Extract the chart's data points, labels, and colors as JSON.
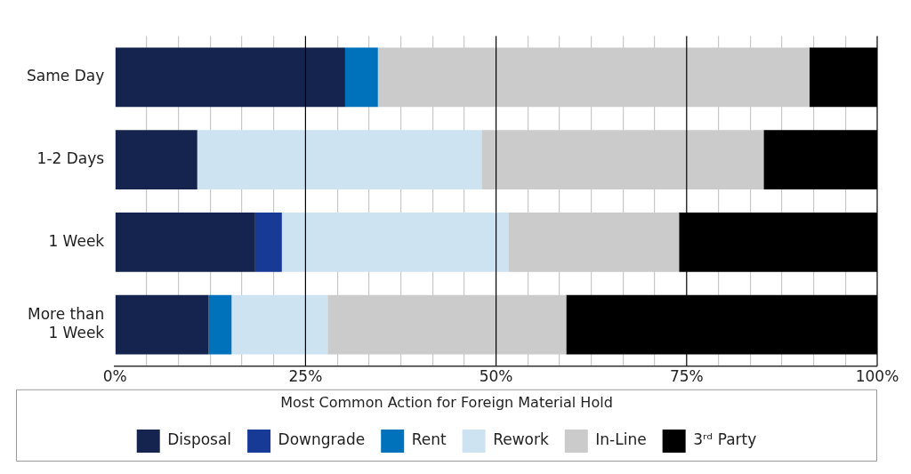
{
  "chart_data": {
    "type": "bar",
    "orientation": "horizontal",
    "stacked": true,
    "categories": [
      "Same Day",
      "1-2 Days",
      "1 Week",
      "More than\n1 Week"
    ],
    "series": [
      {
        "name": "Disposal",
        "color": "#14244f",
        "values": [
          30.2,
          10.8,
          18.4,
          12.3
        ]
      },
      {
        "name": "Downgrade",
        "color": "#163a96",
        "values": [
          0,
          0,
          3.5,
          0
        ]
      },
      {
        "name": "Rent",
        "color": "#0072bc",
        "values": [
          4.3,
          0,
          0,
          3.0
        ]
      },
      {
        "name": "Rework",
        "color": "#cde3f1",
        "values": [
          0,
          37.3,
          29.7,
          12.6
        ]
      },
      {
        "name": "In-Line",
        "color": "#cbcbcb",
        "values": [
          56.6,
          37.0,
          22.4,
          31.3
        ]
      },
      {
        "name": "3ʳᵈ Party",
        "color": "#000000",
        "values": [
          8.9,
          14.9,
          26.0,
          40.8
        ]
      }
    ],
    "xlim": [
      0,
      100
    ],
    "xticks": [
      {
        "value": 0,
        "label": "0%"
      },
      {
        "value": 4.17,
        "label": null
      },
      {
        "value": 8.33,
        "label": null
      },
      {
        "value": 12.5,
        "label": null
      },
      {
        "value": 16.67,
        "label": null
      },
      {
        "value": 20.83,
        "label": null
      },
      {
        "value": 25,
        "label": "25%"
      },
      {
        "value": 29.17,
        "label": null
      },
      {
        "value": 33.33,
        "label": null
      },
      {
        "value": 37.5,
        "label": null
      },
      {
        "value": 41.67,
        "label": null
      },
      {
        "value": 45.83,
        "label": null
      },
      {
        "value": 50,
        "label": "50%"
      },
      {
        "value": 54.17,
        "label": null
      },
      {
        "value": 58.33,
        "label": null
      },
      {
        "value": 62.5,
        "label": null
      },
      {
        "value": 66.67,
        "label": null
      },
      {
        "value": 70.83,
        "label": null
      },
      {
        "value": 75,
        "label": "75%"
      },
      {
        "value": 79.17,
        "label": null
      },
      {
        "value": 83.33,
        "label": null
      },
      {
        "value": 87.5,
        "label": null
      },
      {
        "value": 91.67,
        "label": null
      },
      {
        "value": 95.83,
        "label": null
      },
      {
        "value": 100,
        "label": "100%"
      }
    ],
    "grid": "x",
    "legend": "bottom",
    "legend_title": "Most Common Action for Foreign Material Hold"
  }
}
